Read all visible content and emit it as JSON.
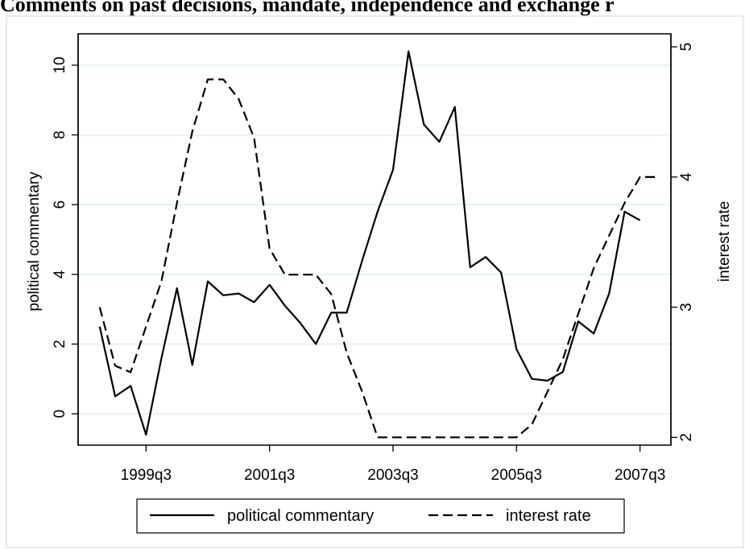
{
  "title": "Comments on past decisions, mandate, independence and exchange r",
  "chart_data": {
    "type": "line",
    "x_axis": {
      "ticks": [
        "1999q3",
        "2001q3",
        "2003q3",
        "2005q3",
        "2007q3"
      ],
      "tick_values": [
        1999.5,
        2001.5,
        2003.5,
        2005.5,
        2007.5
      ]
    },
    "y_left": {
      "label": "political commentary",
      "ticks": [
        0,
        2,
        4,
        6,
        8,
        10
      ],
      "range": [
        -0.9,
        10.9
      ]
    },
    "y_right": {
      "label": "interest rate",
      "ticks": [
        2,
        3,
        4,
        5
      ],
      "range": [
        1.94,
        5.1
      ]
    },
    "grid": true,
    "legend": {
      "position": "bottom",
      "entries": [
        "political commentary",
        "interest rate"
      ]
    },
    "series": [
      {
        "name": "political commentary",
        "axis": "left",
        "style": "solid",
        "x": [
          1998.75,
          1999.0,
          1999.25,
          1999.5,
          1999.75,
          2000.0,
          2000.25,
          2000.5,
          2000.75,
          2001.0,
          2001.25,
          2001.5,
          2001.75,
          2002.0,
          2002.25,
          2002.5,
          2002.75,
          2003.0,
          2003.25,
          2003.5,
          2003.75,
          2004.0,
          2004.25,
          2004.5,
          2004.75,
          2005.0,
          2005.25,
          2005.5,
          2005.75,
          2006.0,
          2006.25,
          2006.5,
          2006.75,
          2007.0,
          2007.25,
          2007.5,
          2007.75
        ],
        "values": [
          2.5,
          0.5,
          0.8,
          -0.6,
          1.6,
          3.6,
          1.4,
          3.8,
          3.4,
          3.45,
          3.2,
          3.7,
          3.1,
          2.6,
          2.0,
          2.9,
          2.9,
          4.4,
          5.8,
          7.0,
          10.4,
          8.3,
          7.8,
          8.8,
          4.2,
          4.5,
          4.05,
          1.85,
          1.0,
          0.95,
          1.2,
          2.65,
          2.3,
          3.45,
          5.8,
          5.55,
          null
        ]
      },
      {
        "name": "interest rate",
        "axis": "right",
        "style": "dashed",
        "x": [
          1998.75,
          1999.0,
          1999.25,
          1999.5,
          1999.75,
          2000.0,
          2000.25,
          2000.5,
          2000.75,
          2001.0,
          2001.25,
          2001.5,
          2001.75,
          2002.0,
          2002.25,
          2002.5,
          2002.75,
          2003.0,
          2003.25,
          2003.5,
          2003.75,
          2004.0,
          2004.25,
          2004.5,
          2004.75,
          2005.0,
          2005.25,
          2005.5,
          2005.75,
          2006.0,
          2006.25,
          2006.5,
          2006.75,
          2007.0,
          2007.25,
          2007.5,
          2007.75
        ],
        "values": [
          3.0,
          2.55,
          2.5,
          2.85,
          3.2,
          3.8,
          4.35,
          4.75,
          4.75,
          4.6,
          4.3,
          3.45,
          3.25,
          3.25,
          3.25,
          3.1,
          2.65,
          2.35,
          2.0,
          2.0,
          2.0,
          2.0,
          2.0,
          2.0,
          2.0,
          2.0,
          2.0,
          2.0,
          2.1,
          2.35,
          2.6,
          2.95,
          3.3,
          3.55,
          3.8,
          4.0,
          4.0
        ]
      }
    ]
  }
}
